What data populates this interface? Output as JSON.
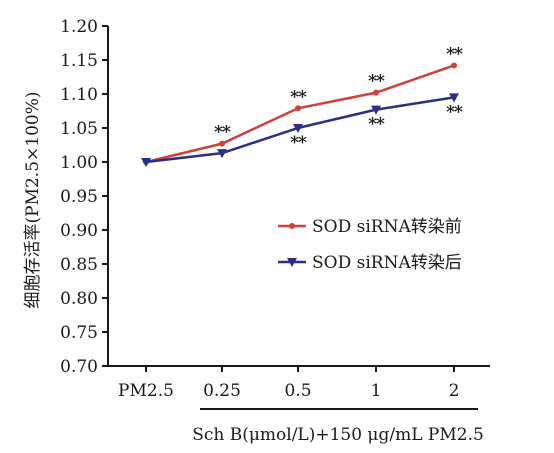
{
  "chart_data": {
    "type": "line",
    "categories": [
      "PM2.5",
      "0.25",
      "0.5",
      "1",
      "2"
    ],
    "series": [
      {
        "name": "SOD siRNA转染前",
        "values": [
          1.0,
          1.027,
          1.079,
          1.102,
          1.142
        ],
        "color": "#d0413a",
        "marker": "dot",
        "annotations": [
          "",
          "**",
          "**",
          "**",
          "**"
        ]
      },
      {
        "name": "SOD siRNA转染后",
        "values": [
          1.0,
          1.013,
          1.05,
          1.077,
          1.095
        ],
        "color": "#2b2f86",
        "marker": "triangle-down",
        "annotations": [
          "",
          "",
          "**",
          "**",
          "**"
        ]
      }
    ],
    "yticks": [
      "0.70",
      "0.75",
      "0.80",
      "0.85",
      "0.90",
      "0.95",
      "1.00",
      "1.05",
      "1.10",
      "1.15",
      "1.20"
    ],
    "ylim": [
      0.7,
      1.2
    ],
    "ylabel": "细胞存活率(PM2.5×100%)",
    "xlabel": "Sch B(μmol/L)+150 μg/mL PM2.5",
    "legend_position": "right"
  }
}
